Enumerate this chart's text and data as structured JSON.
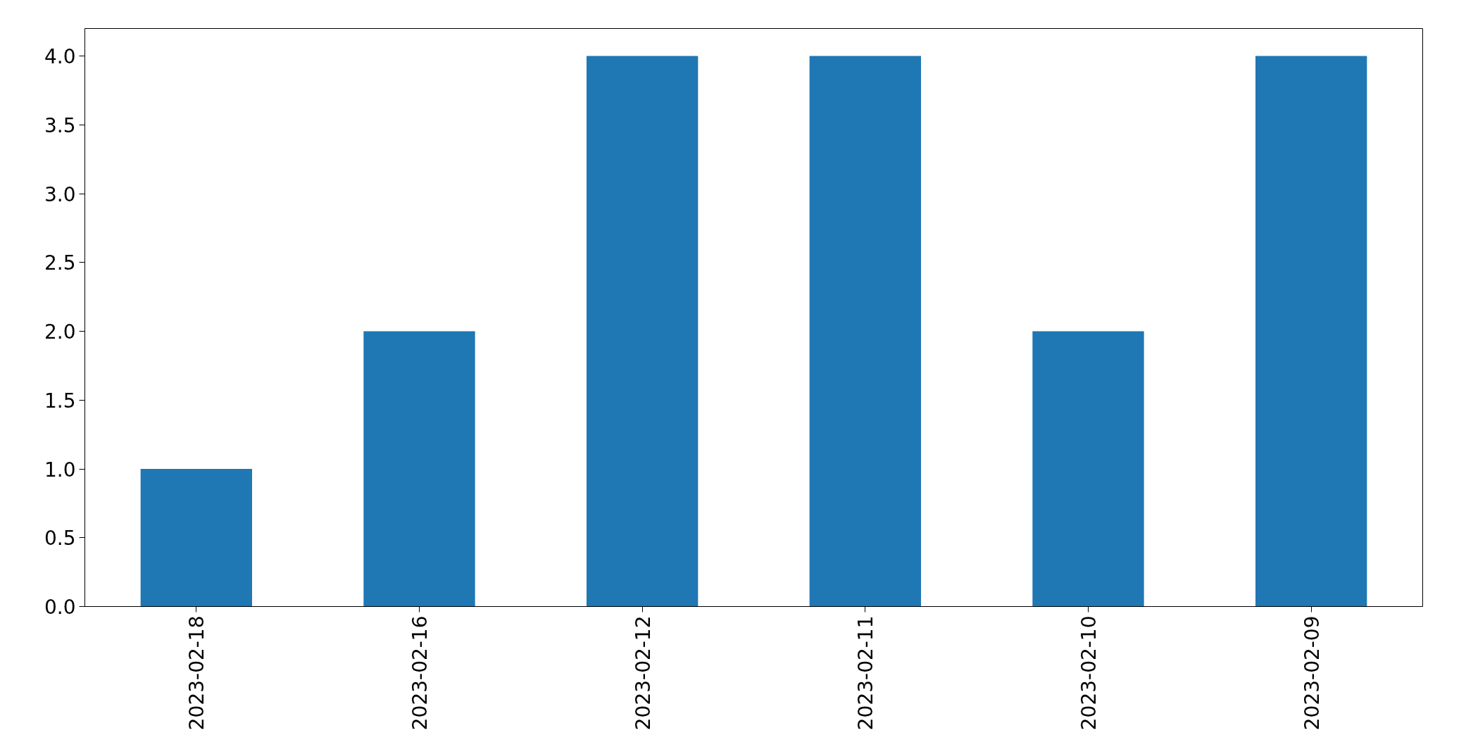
{
  "chart_data": {
    "type": "bar",
    "categories": [
      "2023-02-18",
      "2023-02-16",
      "2023-02-12",
      "2023-02-11",
      "2023-02-10",
      "2023-02-09"
    ],
    "values": [
      1,
      2,
      4,
      4,
      2,
      4
    ],
    "color": "#1f77b4",
    "ylim": [
      0,
      4.2
    ],
    "yticks": [
      {
        "value": 0,
        "label": "0.0"
      },
      {
        "value": 0.5,
        "label": "0.5"
      },
      {
        "value": 1,
        "label": "1.0"
      },
      {
        "value": 1.5,
        "label": "1.5"
      },
      {
        "value": 2,
        "label": "2.0"
      },
      {
        "value": 2.5,
        "label": "2.5"
      },
      {
        "value": 3,
        "label": "3.0"
      },
      {
        "value": 3.5,
        "label": "3.5"
      },
      {
        "value": 4,
        "label": "4.0"
      }
    ],
    "grid": false
  }
}
